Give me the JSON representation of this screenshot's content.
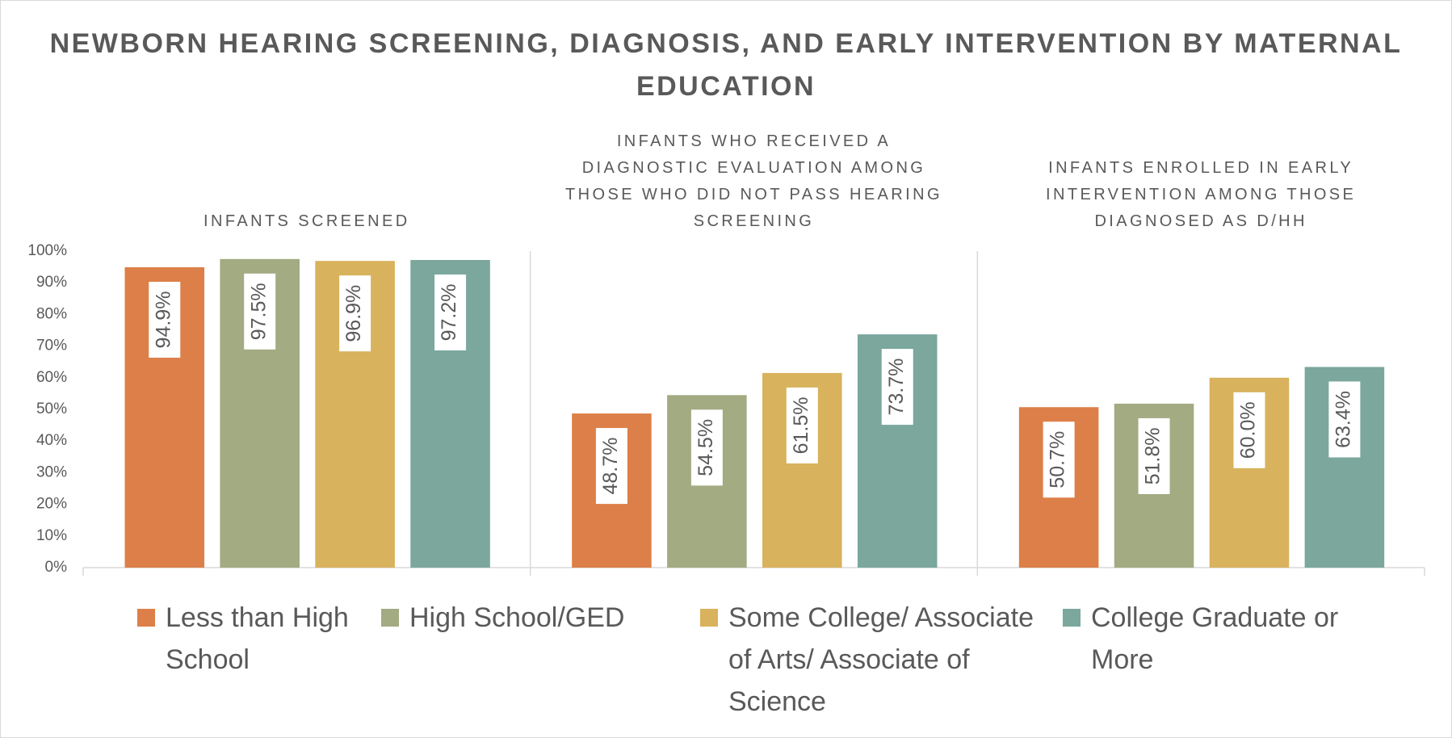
{
  "chart_data": {
    "type": "bar",
    "title": "NEWBORN HEARING SCREENING, DIAGNOSIS, AND EARLY INTERVENTION BY MATERNAL EDUCATION",
    "categories": [
      "INFANTS SCREENED",
      "INFANTS WHO RECEIVED A DIAGNOSTIC EVALUATION AMONG THOSE WHO DID NOT PASS HEARING SCREENING",
      "INFANTS ENROLLED IN EARLY INTERVENTION AMONG THOSE DIAGNOSED AS D/HH"
    ],
    "series": [
      {
        "name": "Less than High School",
        "color": "#dd7f48",
        "values": [
          94.9,
          48.7,
          50.7
        ],
        "value_labels": [
          "94.9%",
          "48.7%",
          "50.7%"
        ]
      },
      {
        "name": "High School/GED",
        "color": "#a2ab81",
        "values": [
          97.5,
          54.5,
          51.8
        ],
        "value_labels": [
          "97.5%",
          "54.5%",
          "51.8%"
        ]
      },
      {
        "name": "Some College/ Associate of Arts/ Associate of Science",
        "color": "#d8b25c",
        "values": [
          96.9,
          61.5,
          60.0
        ],
        "value_labels": [
          "96.9%",
          "61.5%",
          "60.0%"
        ]
      },
      {
        "name": "College Graduate or More",
        "color": "#7ba79d",
        "values": [
          97.2,
          73.7,
          63.4
        ],
        "value_labels": [
          "97.2%",
          "73.7%",
          "63.4%"
        ]
      }
    ],
    "ylim": [
      0,
      100
    ],
    "yticks": [
      {
        "value": 0,
        "label": "0%"
      },
      {
        "value": 10,
        "label": "10%"
      },
      {
        "value": 20,
        "label": "20%"
      },
      {
        "value": 30,
        "label": "30%"
      },
      {
        "value": 40,
        "label": "40%"
      },
      {
        "value": 50,
        "label": "50%"
      },
      {
        "value": 60,
        "label": "60%"
      },
      {
        "value": 70,
        "label": "70%"
      },
      {
        "value": 80,
        "label": "80%"
      },
      {
        "value": 90,
        "label": "90%"
      },
      {
        "value": 100,
        "label": "100%"
      }
    ],
    "grid": false,
    "legend": "bottom"
  }
}
